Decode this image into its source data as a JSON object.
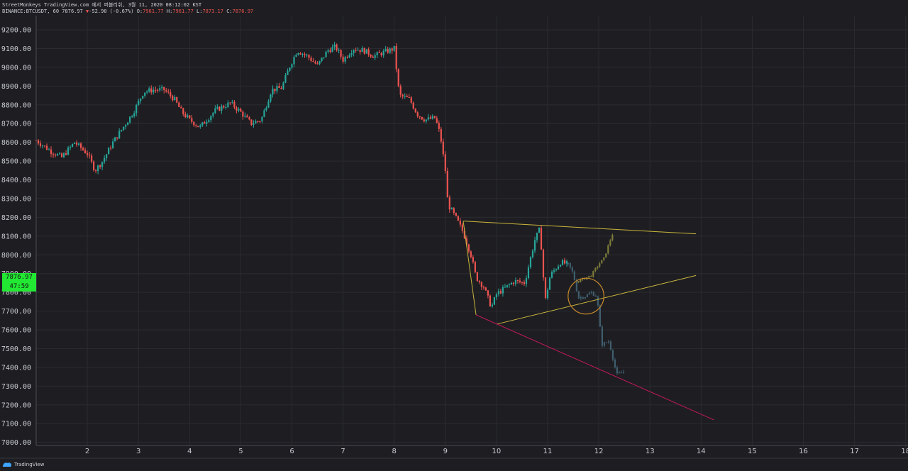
{
  "header": {
    "line1": "StreetMonkeys TradingView.com 에서 퍼블리쉬, 3월 11, 2020 08:12:02 KST",
    "symbol": "BINANCE:BTCUSDT, 60",
    "last": "7876.97",
    "arrow": "▼",
    "change": "-52.90 (-0.67%)",
    "o_label": "O:",
    "o_val": "7961.77",
    "h_label": "H:",
    "h_val": "7961.77",
    "l_label": "L:",
    "l_val": "7873.17",
    "c_label": "C:",
    "c_val": "7876.97"
  },
  "badges": {
    "price": "7876.97",
    "countdown": "47:59"
  },
  "footer": {
    "brand": "TradingView",
    "logo_icon": "tradingview-logo-icon"
  },
  "colors": {
    "up": "#26a69a",
    "down": "#ef5350",
    "bg": "#1e1e22",
    "grid": "#2a2b30",
    "triangle": "#c9b53c",
    "support": "#c2185b",
    "projection": "#3f5e6e",
    "circle": "#c98a2a"
  },
  "chart_data": {
    "type": "candlestick",
    "title": "",
    "xlabel": "",
    "ylabel": "",
    "ylim": [
      7000,
      9250
    ],
    "xlim": [
      1,
      18
    ],
    "y_ticks": [
      "9200.00",
      "9100.00",
      "9000.00",
      "8900.00",
      "8800.00",
      "8700.00",
      "8600.00",
      "8500.00",
      "8400.00",
      "8300.00",
      "8200.00",
      "8100.00",
      "8000.00",
      "7900.00",
      "7800.00",
      "7700.00",
      "7600.00",
      "7500.00",
      "7400.00",
      "7300.00",
      "7200.00",
      "7100.00",
      "7000.00"
    ],
    "x_ticks": [
      "2",
      "3",
      "4",
      "5",
      "6",
      "7",
      "8",
      "9",
      "10",
      "11",
      "12",
      "13",
      "14",
      "15",
      "16",
      "17",
      "18"
    ],
    "price_path": [
      [
        1.0,
        8610
      ],
      [
        1.3,
        8550
      ],
      [
        1.5,
        8520
      ],
      [
        1.75,
        8600
      ],
      [
        2.0,
        8540
      ],
      [
        2.15,
        8450
      ],
      [
        2.3,
        8500
      ],
      [
        2.5,
        8600
      ],
      [
        2.7,
        8680
      ],
      [
        2.9,
        8760
      ],
      [
        3.1,
        8870
      ],
      [
        3.3,
        8880
      ],
      [
        3.5,
        8880
      ],
      [
        3.7,
        8830
      ],
      [
        3.85,
        8760
      ],
      [
        4.0,
        8720
      ],
      [
        4.2,
        8680
      ],
      [
        4.5,
        8770
      ],
      [
        4.8,
        8810
      ],
      [
        5.0,
        8760
      ],
      [
        5.2,
        8700
      ],
      [
        5.4,
        8720
      ],
      [
        5.6,
        8880
      ],
      [
        5.8,
        8890
      ],
      [
        5.95,
        9000
      ],
      [
        6.1,
        9090
      ],
      [
        6.3,
        9060
      ],
      [
        6.5,
        9010
      ],
      [
        6.7,
        9090
      ],
      [
        6.85,
        9110
      ],
      [
        7.0,
        9040
      ],
      [
        7.2,
        9100
      ],
      [
        7.4,
        9090
      ],
      [
        7.6,
        9060
      ],
      [
        7.8,
        9080
      ],
      [
        8.0,
        9100
      ],
      [
        8.1,
        8850
      ],
      [
        8.3,
        8830
      ],
      [
        8.45,
        8750
      ],
      [
        8.6,
        8720
      ],
      [
        8.8,
        8730
      ],
      [
        8.9,
        8640
      ],
      [
        9.0,
        8450
      ],
      [
        9.05,
        8270
      ],
      [
        9.2,
        8200
      ],
      [
        9.35,
        8120
      ],
      [
        9.5,
        8000
      ],
      [
        9.6,
        7880
      ],
      [
        9.75,
        7830
      ],
      [
        9.9,
        7720
      ],
      [
        10.0,
        7790
      ],
      [
        10.15,
        7820
      ],
      [
        10.35,
        7860
      ],
      [
        10.55,
        7850
      ],
      [
        10.75,
        8080
      ],
      [
        10.85,
        8140
      ],
      [
        10.95,
        7750
      ],
      [
        11.05,
        7890
      ],
      [
        11.25,
        7960
      ],
      [
        11.4,
        7950
      ]
    ],
    "projection_path": [
      [
        11.4,
        7950
      ],
      [
        11.5,
        7900
      ],
      [
        11.6,
        7770
      ],
      [
        11.75,
        7780
      ],
      [
        11.85,
        7800
      ],
      [
        11.95,
        7780
      ],
      [
        12.0,
        7700
      ],
      [
        12.05,
        7520
      ],
      [
        12.2,
        7540
      ],
      [
        12.35,
        7360
      ],
      [
        12.5,
        7380
      ]
    ],
    "future_path": [
      [
        11.6,
        7860
      ],
      [
        11.85,
        7890
      ],
      [
        12.0,
        7950
      ],
      [
        12.1,
        7980
      ],
      [
        12.25,
        8100
      ],
      [
        12.3,
        8130
      ]
    ],
    "lines": [
      {
        "kind": "resistance",
        "from": [
          9.35,
          8180
        ],
        "to": [
          13.9,
          8112
        ]
      },
      {
        "kind": "triangle-support",
        "from": [
          10.0,
          7630
        ],
        "to": [
          13.9,
          7890
        ]
      },
      {
        "kind": "lower-support",
        "from": [
          9.6,
          7680
        ],
        "to": [
          14.25,
          7120
        ]
      },
      {
        "kind": "apex-left",
        "from": [
          9.35,
          8180
        ],
        "to": [
          9.6,
          7680
        ]
      }
    ],
    "circle": {
      "center": [
        11.75,
        7780
      ],
      "radius_days": 0.35
    },
    "current_price": 7876.97
  }
}
